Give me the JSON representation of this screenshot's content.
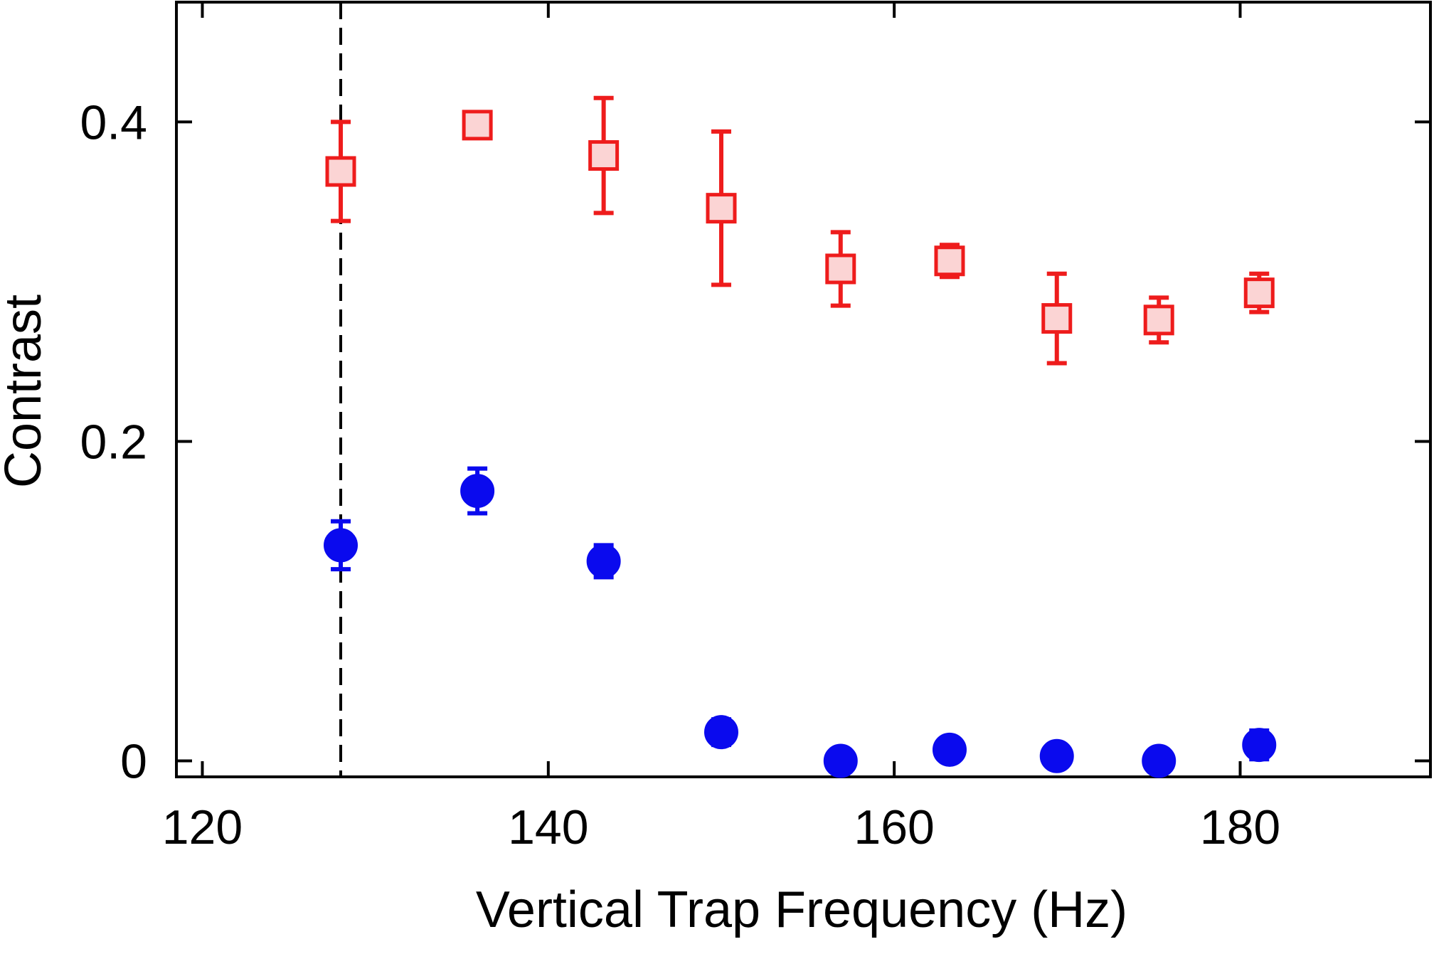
{
  "chart_data": {
    "type": "scatter",
    "title": "",
    "xlabel": "Vertical Trap Frequency (Hz)",
    "ylabel": "Contrast",
    "xlim": [
      118.5,
      191
    ],
    "ylim": [
      -0.01,
      0.475
    ],
    "x_ticks": [
      120,
      140,
      160,
      180
    ],
    "x_tick_labels": [
      "120",
      "140",
      "160",
      "180"
    ],
    "y_ticks": [
      0,
      0.2,
      0.4
    ],
    "y_tick_labels": [
      "0",
      "0.2",
      "0.4"
    ],
    "grid": false,
    "legend": "none",
    "reference_line": {
      "x": 128,
      "style": "dashed",
      "color": "#000000"
    },
    "series": [
      {
        "marker": "square",
        "stroke": "#ee1c1c",
        "fill": "#fbd4d4",
        "points": [
          {
            "x": 128.0,
            "y": 0.369,
            "err": 0.031
          },
          {
            "x": 135.9,
            "y": 0.398,
            "err": 0.003
          },
          {
            "x": 143.2,
            "y": 0.379,
            "err": 0.036
          },
          {
            "x": 150.0,
            "y": 0.346,
            "err": 0.048
          },
          {
            "x": 156.9,
            "y": 0.308,
            "err": 0.023
          },
          {
            "x": 163.2,
            "y": 0.313,
            "err": 0.01
          },
          {
            "x": 169.4,
            "y": 0.277,
            "err": 0.028
          },
          {
            "x": 175.3,
            "y": 0.276,
            "err": 0.014
          },
          {
            "x": 181.1,
            "y": 0.293,
            "err": 0.012
          }
        ]
      },
      {
        "marker": "circle",
        "stroke": "#0a0aee",
        "fill": "#0a0aee",
        "points": [
          {
            "x": 128.0,
            "y": 0.135,
            "err": 0.015
          },
          {
            "x": 135.9,
            "y": 0.169,
            "err": 0.014
          },
          {
            "x": 143.2,
            "y": 0.125,
            "err": 0.01
          },
          {
            "x": 150.0,
            "y": 0.018,
            "err": 0.008
          },
          {
            "x": 156.9,
            "y": 0.0,
            "err": 0.0
          },
          {
            "x": 163.2,
            "y": 0.007,
            "err": 0.0
          },
          {
            "x": 169.4,
            "y": 0.003,
            "err": 0.0
          },
          {
            "x": 175.3,
            "y": 0.0,
            "err": 0.0
          },
          {
            "x": 181.1,
            "y": 0.01,
            "err": 0.009
          }
        ]
      }
    ]
  }
}
